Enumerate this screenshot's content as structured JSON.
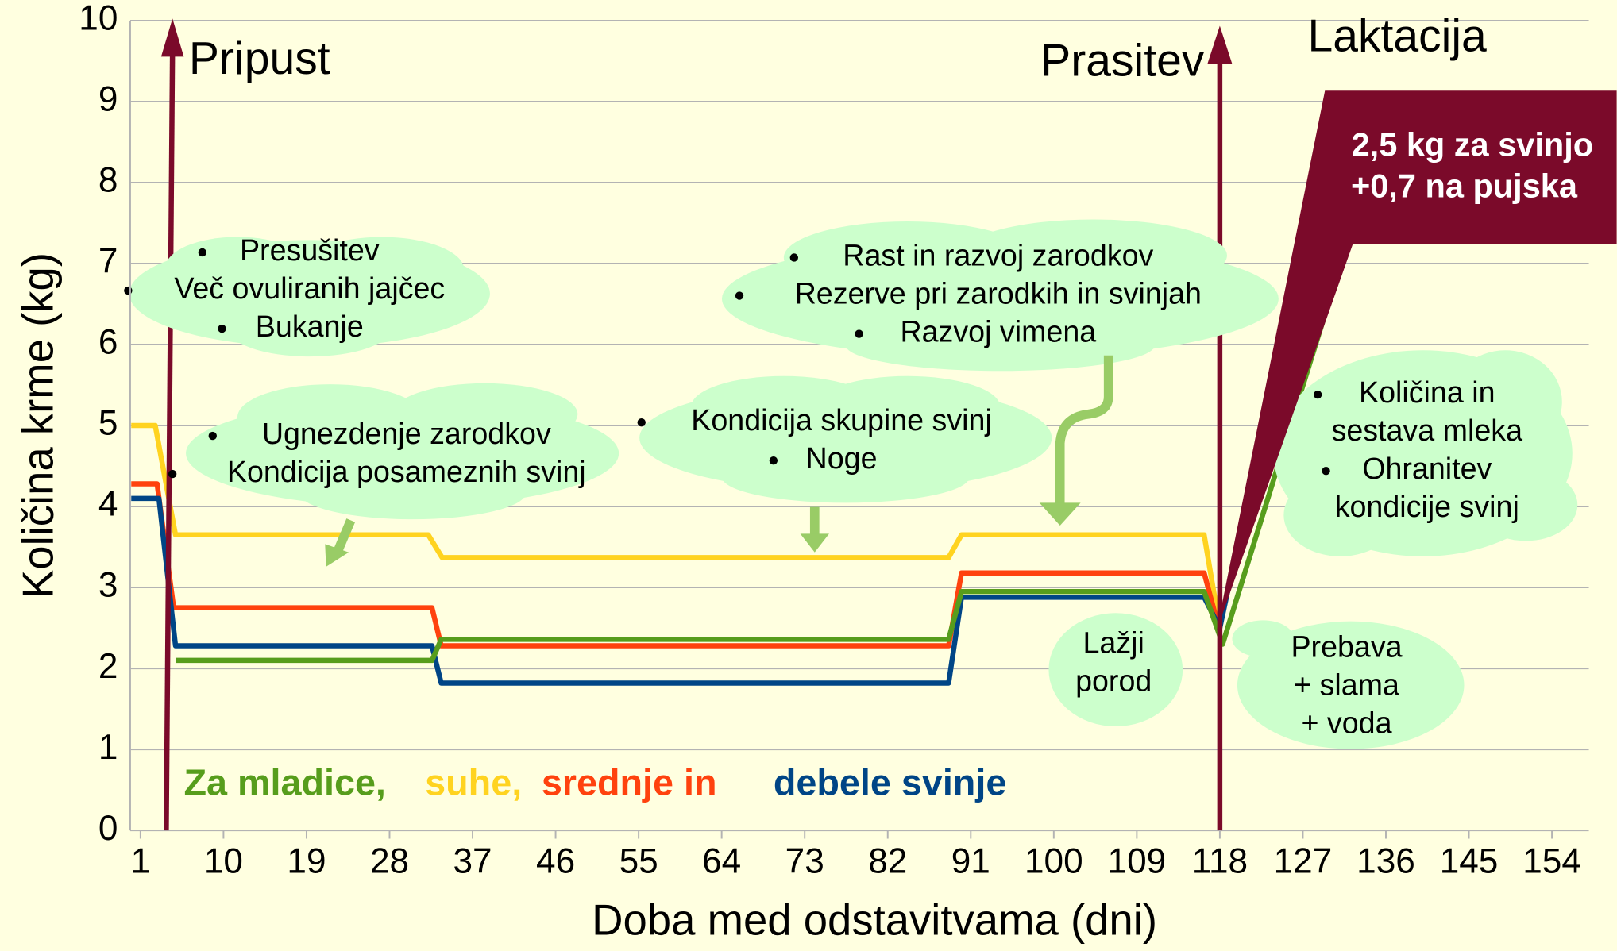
{
  "chart_data": {
    "type": "line",
    "x_label": "Doba med odstavitvama (dni)",
    "y_label": "Količina krme (kg)",
    "xlim": [
      0,
      158
    ],
    "ylim": [
      0,
      10
    ],
    "xticks": [
      1,
      10,
      19,
      28,
      37,
      46,
      55,
      64,
      73,
      82,
      91,
      100,
      109,
      118,
      127,
      136,
      145,
      154
    ],
    "yticks": [
      0,
      1,
      2,
      3,
      4,
      5,
      6,
      7,
      8,
      9,
      10
    ],
    "grid": true,
    "series": [
      {
        "name": "suhe,",
        "color": "#ffd320",
        "x": [
          0,
          2.6,
          4.8,
          32.2,
          33.7,
          88.6,
          90,
          116.3,
          118
        ],
        "values": [
          5.0,
          5.0,
          3.65,
          3.65,
          3.37,
          3.37,
          3.65,
          3.65,
          2.5
        ]
      },
      {
        "name": "srednje in",
        "color": "#ff420e",
        "x": [
          0,
          2.8,
          4.6,
          32.6,
          33.6,
          88.6,
          90,
          116.3,
          118
        ],
        "values": [
          4.28,
          4.28,
          2.75,
          2.75,
          2.28,
          2.28,
          3.18,
          3.18,
          2.45
        ]
      },
      {
        "name": "debele svinje",
        "color": "#004586",
        "x": [
          0,
          3,
          4.8,
          32.6,
          33.6,
          88.6,
          90,
          116.3,
          118,
          119.5
        ],
        "values": [
          4.1,
          4.1,
          2.28,
          2.28,
          1.82,
          1.82,
          2.88,
          2.88,
          2.5,
          3.3
        ]
      },
      {
        "name": "Za mladice,",
        "color": "#579d1c",
        "x": [
          4.8,
          32.6,
          33.6,
          88.6,
          90,
          116.3,
          118,
          118.3,
          132.2
        ],
        "values": [
          2.1,
          2.1,
          2.36,
          2.36,
          2.95,
          2.95,
          2.4,
          2.3,
          7.4
        ]
      }
    ],
    "annotations": {
      "phases": [
        "Pripust",
        "Prasitev",
        "Laktacija"
      ],
      "callout": [
        "2,5 kg za svinjo",
        "+0,7 na pujska"
      ],
      "notes": [
        [
          "Presušitev",
          "Več ovuliranih jajčec",
          "Bukanje"
        ],
        [
          "Ugnezdenje zarodkov",
          "Kondicija posameznih svinj"
        ],
        [
          "Kondicija skupine svinj",
          "Noge"
        ],
        [
          "Rast in razvoj zarodkov",
          "Rezerve pri zarodkih in svinjah",
          "Razvoj vimena"
        ],
        [
          "Količina in",
          "sestava mleka",
          "Ohranitev",
          "kondicije svinj"
        ],
        [
          "Lažji",
          "porod"
        ],
        [
          "Prebava",
          "+ slama",
          "+ voda"
        ]
      ]
    }
  }
}
